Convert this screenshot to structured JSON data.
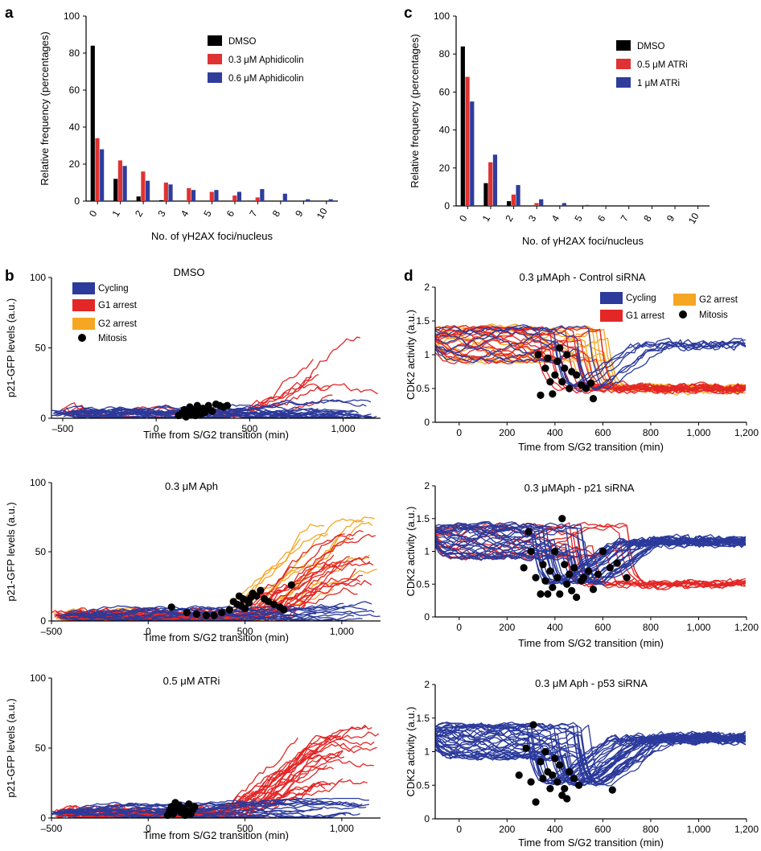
{
  "colors": {
    "dmso": "#000000",
    "red": "#e03232",
    "blue": "#2e3d9c",
    "g1": "#e32726",
    "g2": "#f5a623",
    "cycling": "#2b3a9b",
    "mitosis": "#000000"
  },
  "figure": {
    "panel_labels": [
      "a",
      "b",
      "c",
      "d"
    ]
  },
  "chart_data": [
    {
      "panel": "a",
      "type": "bar",
      "categories": [
        "0",
        "1",
        "2",
        "3",
        "4",
        "5",
        "6",
        "7",
        "8",
        "9",
        "10"
      ],
      "series": [
        {
          "name": "DMSO",
          "values": [
            84,
            12,
            2.5,
            0.5,
            0,
            0,
            0,
            0,
            0,
            0,
            0
          ]
        },
        {
          "name": "0.3 μM Aphidicolin",
          "values": [
            34,
            22,
            16,
            10,
            7,
            5,
            3,
            2,
            0,
            0,
            0
          ]
        },
        {
          "name": "0.6 μM Aphidicolin",
          "values": [
            28,
            19,
            11,
            9,
            6,
            6,
            5,
            6.5,
            4,
            1,
            1
          ]
        }
      ],
      "title": "",
      "xlabel": "No. of γH2AX foci/nucleus",
      "ylabel": "Relative frequency (percentages)",
      "ylim": [
        0,
        100
      ],
      "yticks": [
        0,
        20,
        40,
        60,
        80,
        100
      ],
      "legend": "top-right"
    },
    {
      "panel": "c",
      "type": "bar",
      "categories": [
        "0",
        "1",
        "2",
        "3",
        "4",
        "5",
        "6",
        "7",
        "8",
        "9",
        "10"
      ],
      "series": [
        {
          "name": "DMSO",
          "values": [
            84,
            12,
            2.5,
            0,
            0,
            0,
            0,
            0,
            0,
            0,
            0
          ]
        },
        {
          "name": "0.5 μM ATRi",
          "values": [
            68,
            23,
            6,
            1.5,
            0,
            0,
            0,
            0,
            0,
            0,
            0
          ]
        },
        {
          "name": "1 μM ATRi",
          "values": [
            55,
            27,
            11,
            3.5,
            1.5,
            0.5,
            0,
            0,
            0,
            0,
            0
          ]
        }
      ],
      "title": "",
      "xlabel": "No. of γH2AX foci/nucleus",
      "ylabel": "Relative frequency (percentages)",
      "ylim": [
        0,
        100
      ],
      "yticks": [
        0,
        20,
        40,
        60,
        80,
        100
      ],
      "legend": "top-right"
    },
    {
      "panel": "b1",
      "type": "line",
      "title": "DMSO",
      "xlabel": "Time from S/G2 transition (min)",
      "ylabel": "p21-GFP levels (a.u.)",
      "xlim": [
        -560,
        1200
      ],
      "ylim": [
        0,
        100
      ],
      "yticks": [
        0,
        50,
        100
      ],
      "xticks": [
        -500,
        0,
        500,
        1000
      ],
      "xticklabels": [
        "–500",
        "0",
        "500",
        "1,000"
      ],
      "legend": [
        "Cycling",
        "G1 arrest",
        "G2 arrest",
        "Mitosis"
      ],
      "series": [
        {
          "name": "G1 arrest",
          "count": 7,
          "onset": 300,
          "peak": 45
        },
        {
          "name": "Cycling",
          "count": 20,
          "level": 4
        }
      ],
      "mitosis": [
        [
          120,
          2
        ],
        [
          140,
          4
        ],
        [
          150,
          6
        ],
        [
          160,
          1
        ],
        [
          170,
          5
        ],
        [
          180,
          8
        ],
        [
          190,
          3
        ],
        [
          200,
          6
        ],
        [
          210,
          2
        ],
        [
          220,
          9
        ],
        [
          230,
          5
        ],
        [
          240,
          3
        ],
        [
          250,
          7
        ],
        [
          260,
          4
        ],
        [
          270,
          6
        ],
        [
          280,
          9
        ],
        [
          300,
          5
        ],
        [
          320,
          10
        ],
        [
          340,
          9
        ],
        [
          360,
          8
        ],
        [
          380,
          9
        ]
      ]
    },
    {
      "panel": "b2",
      "type": "line",
      "title": "0.3 μM Aph",
      "xlabel": "Time from S/G2 transition (min)",
      "ylabel": "p21-GFP levels (a.u.)",
      "xlim": [
        -500,
        1200
      ],
      "ylim": [
        0,
        100
      ],
      "yticks": [
        0,
        50,
        100
      ],
      "xticks": [
        -500,
        0,
        500,
        1000
      ],
      "xticklabels": [
        "–500",
        "0",
        "500",
        "1,000"
      ],
      "series": [
        {
          "name": "G2 arrest",
          "count": 12,
          "onset": 300,
          "peak": 60
        },
        {
          "name": "G1 arrest",
          "count": 24,
          "onset": 350,
          "peak": 50
        },
        {
          "name": "Cycling",
          "count": 14,
          "level": 3
        }
      ],
      "mitosis": [
        [
          120,
          10
        ],
        [
          200,
          6
        ],
        [
          250,
          5
        ],
        [
          300,
          4
        ],
        [
          340,
          4
        ],
        [
          380,
          6
        ],
        [
          420,
          8
        ],
        [
          440,
          14
        ],
        [
          460,
          12
        ],
        [
          470,
          18
        ],
        [
          480,
          11
        ],
        [
          490,
          16
        ],
        [
          500,
          9
        ],
        [
          510,
          15
        ],
        [
          520,
          13
        ],
        [
          530,
          17
        ],
        [
          540,
          20
        ],
        [
          560,
          18
        ],
        [
          580,
          22
        ],
        [
          600,
          16
        ],
        [
          620,
          14
        ],
        [
          650,
          12
        ],
        [
          680,
          10
        ],
        [
          700,
          8
        ],
        [
          740,
          26
        ]
      ]
    },
    {
      "panel": "b3",
      "type": "line",
      "title": "0.5 μM ATRi",
      "xlabel": "Time from S/G2 transition (min)",
      "ylabel": "p21-GFP levels (a.u.)",
      "xlim": [
        -500,
        1200
      ],
      "ylim": [
        0,
        100
      ],
      "yticks": [
        0,
        50,
        100
      ],
      "xticks": [
        -500,
        0,
        500,
        1000
      ],
      "xticklabels": [
        "–500",
        "0",
        "500",
        "1,000"
      ],
      "series": [
        {
          "name": "G1 arrest",
          "count": 28,
          "onset": 250,
          "peak": 55
        },
        {
          "name": "Cycling",
          "count": 16,
          "level": 3
        }
      ],
      "mitosis": [
        [
          100,
          2
        ],
        [
          110,
          5
        ],
        [
          120,
          8
        ],
        [
          130,
          3
        ],
        [
          140,
          11
        ],
        [
          150,
          6
        ],
        [
          160,
          9
        ],
        [
          170,
          4
        ],
        [
          180,
          7
        ],
        [
          190,
          2
        ],
        [
          200,
          5
        ],
        [
          210,
          10
        ],
        [
          220,
          3
        ],
        [
          230,
          6
        ],
        [
          240,
          8
        ]
      ]
    },
    {
      "panel": "d1",
      "type": "line",
      "title": "0.3 μMAph  -  Control siRNA",
      "xlabel": "Time from S/G2 transition (min)",
      "ylabel": "CDK2 activity (a.u.)",
      "xlim": [
        -100,
        1200
      ],
      "ylim": [
        0,
        2
      ],
      "yticks": [
        0,
        0.5,
        1,
        1.5,
        2
      ],
      "yticklabels": [
        "0",
        "0.5",
        "1",
        "1.5",
        "2"
      ],
      "xticks": [
        0,
        200,
        400,
        600,
        800,
        1000,
        1200
      ],
      "xticklabels": [
        "0",
        "200",
        "400",
        "600",
        "800",
        "1,000",
        "1,200"
      ],
      "legend": [
        "Cycling",
        "G1 arrest",
        "G2 arrest",
        "Mitosis"
      ],
      "series": [
        {
          "name": "G2 arrest",
          "count": 12,
          "drop": [
            480,
            640
          ],
          "end": 0.5
        },
        {
          "name": "G1 arrest",
          "count": 16,
          "drop": [
            330,
            600
          ],
          "end": 0.5
        },
        {
          "name": "Cycling",
          "count": 8,
          "drop": [
            340,
            560
          ],
          "end": 1.15
        }
      ],
      "mitosis": [
        [
          330,
          1.0
        ],
        [
          340,
          0.4
        ],
        [
          360,
          0.8
        ],
        [
          370,
          0.95
        ],
        [
          380,
          0.6
        ],
        [
          390,
          0.42
        ],
        [
          400,
          0.7
        ],
        [
          410,
          0.9
        ],
        [
          420,
          1.1
        ],
        [
          430,
          0.6
        ],
        [
          440,
          0.8
        ],
        [
          450,
          1.0
        ],
        [
          460,
          0.5
        ],
        [
          470,
          0.75
        ],
        [
          490,
          0.7
        ],
        [
          510,
          0.55
        ],
        [
          530,
          0.5
        ],
        [
          550,
          0.58
        ],
        [
          560,
          0.35
        ]
      ]
    },
    {
      "panel": "d2",
      "type": "line",
      "title": "0.3 μMAph  -  p21 siRNA",
      "xlabel": "Time from S/G2 transition (min)",
      "ylabel": "CDK2 activity (a.u.)",
      "xlim": [
        -100,
        1200
      ],
      "ylim": [
        0,
        2
      ],
      "yticks": [
        0,
        0.5,
        1,
        1.5,
        2
      ],
      "yticklabels": [
        "0",
        "0.5",
        "1",
        "1.5",
        "2"
      ],
      "xticks": [
        0,
        200,
        400,
        600,
        800,
        1000,
        1200
      ],
      "xticklabels": [
        "0",
        "200",
        "400",
        "600",
        "800",
        "1,000",
        "1,200"
      ],
      "series": [
        {
          "name": "G1 arrest",
          "count": 12,
          "drop": [
            440,
            720
          ],
          "end": 0.5
        },
        {
          "name": "Cycling",
          "count": 28,
          "drop": [
            280,
            560
          ],
          "end": 1.15
        }
      ],
      "mitosis": [
        [
          270,
          0.75
        ],
        [
          290,
          1.3
        ],
        [
          300,
          1.0
        ],
        [
          320,
          0.6
        ],
        [
          340,
          0.35
        ],
        [
          350,
          0.8
        ],
        [
          360,
          0.55
        ],
        [
          370,
          0.35
        ],
        [
          380,
          0.7
        ],
        [
          390,
          0.45
        ],
        [
          400,
          1.0
        ],
        [
          410,
          0.6
        ],
        [
          420,
          0.35
        ],
        [
          430,
          1.5
        ],
        [
          440,
          0.8
        ],
        [
          450,
          0.5
        ],
        [
          460,
          0.65
        ],
        [
          470,
          0.4
        ],
        [
          480,
          0.75
        ],
        [
          490,
          0.3
        ],
        [
          510,
          0.55
        ],
        [
          520,
          0.6
        ],
        [
          540,
          0.7
        ],
        [
          560,
          0.42
        ],
        [
          580,
          0.65
        ],
        [
          600,
          1.0
        ],
        [
          630,
          0.75
        ],
        [
          660,
          0.82
        ],
        [
          700,
          0.6
        ]
      ]
    },
    {
      "panel": "d3",
      "type": "line",
      "title": "0.3 μM Aph  -  p53 siRNA",
      "xlabel": "Time from S/G2 transition (min)",
      "ylabel": "CDK2 activity (a.u.)",
      "xlim": [
        -100,
        1200
      ],
      "ylim": [
        0,
        2
      ],
      "yticks": [
        0,
        0.5,
        1,
        1.5,
        2
      ],
      "yticklabels": [
        "0",
        "0.5",
        "1",
        "1.5",
        "2"
      ],
      "xticks": [
        0,
        200,
        400,
        600,
        800,
        1000,
        1200
      ],
      "xticklabels": [
        "0",
        "200",
        "400",
        "600",
        "800",
        "1,000",
        "1,200"
      ],
      "series": [
        {
          "name": "Cycling",
          "count": 36,
          "drop": [
            280,
            560
          ],
          "end": 1.2
        }
      ],
      "mitosis": [
        [
          250,
          0.65
        ],
        [
          280,
          1.05
        ],
        [
          300,
          0.55
        ],
        [
          310,
          1.4
        ],
        [
          320,
          0.25
        ],
        [
          340,
          0.85
        ],
        [
          350,
          0.6
        ],
        [
          360,
          1.0
        ],
        [
          370,
          0.7
        ],
        [
          380,
          0.45
        ],
        [
          390,
          0.65
        ],
        [
          400,
          0.9
        ],
        [
          410,
          0.55
        ],
        [
          420,
          0.8
        ],
        [
          430,
          0.35
        ],
        [
          440,
          0.45
        ],
        [
          450,
          0.3
        ],
        [
          460,
          0.7
        ],
        [
          480,
          0.6
        ],
        [
          500,
          0.5
        ],
        [
          640,
          0.43
        ]
      ]
    }
  ]
}
